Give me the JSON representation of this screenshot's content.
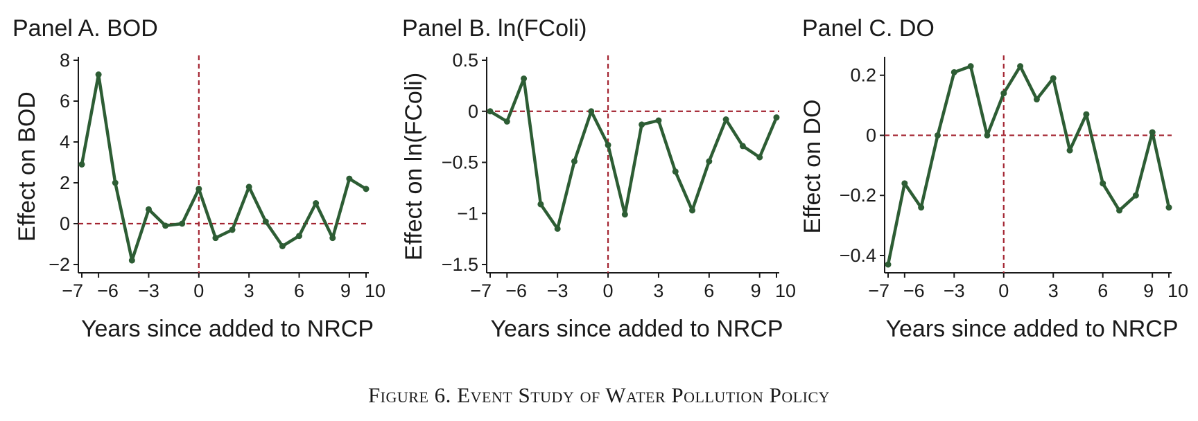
{
  "caption": "Figure 6. Event Study of Water Pollution Policy",
  "chart_data": [
    {
      "type": "line",
      "title": "Panel A. BOD",
      "xlabel": "Years since added to NRCP",
      "ylabel": "Effect on BOD",
      "xlim": [
        -7,
        10
      ],
      "ylim": [
        -2,
        8
      ],
      "xticks": [
        -7,
        -6,
        -3,
        0,
        3,
        6,
        9,
        10
      ],
      "xtick_labels": [
        "−7",
        "−6",
        "−3",
        "0",
        "3",
        "6",
        "9",
        "10"
      ],
      "yticks": [
        -2,
        0,
        2,
        4,
        6,
        8
      ],
      "ytick_labels": [
        "−2",
        "0",
        "2",
        "4",
        "6",
        "8"
      ],
      "reference_lines": {
        "x": 0,
        "y": 0
      },
      "series": [
        {
          "x": [
            -7,
            -6,
            -5,
            -4,
            -3,
            -2,
            -1,
            0,
            1,
            2,
            3,
            4,
            5,
            6,
            7,
            8,
            9,
            10
          ],
          "y": [
            2.9,
            7.3,
            2.0,
            -1.8,
            0.7,
            -0.1,
            0.0,
            1.7,
            -0.7,
            -0.3,
            1.8,
            0.1,
            -1.1,
            -0.6,
            1.0,
            -0.7,
            2.2,
            1.7
          ]
        }
      ]
    },
    {
      "type": "line",
      "title": "Panel B. ln(FColi)",
      "xlabel": "Years since added to NRCP",
      "ylabel": "Effect on ln(FColi)",
      "xlim": [
        -7,
        10
      ],
      "ylim": [
        -1.5,
        0.5
      ],
      "xticks": [
        -7,
        -6,
        -3,
        0,
        3,
        6,
        9,
        10
      ],
      "xtick_labels": [
        "−7",
        "−6",
        "−3",
        "0",
        "3",
        "6",
        "9",
        "10"
      ],
      "yticks": [
        -1.5,
        -1,
        -0.5,
        0,
        0.5
      ],
      "ytick_labels": [
        "−1.5",
        "−1",
        "−0.5",
        "0",
        "0.5"
      ],
      "reference_lines": {
        "x": 0,
        "y": 0
      },
      "series": [
        {
          "x": [
            -7,
            -6,
            -5,
            -4,
            -3,
            -2,
            -1,
            0,
            1,
            2,
            3,
            4,
            5,
            6,
            7,
            8,
            9,
            10
          ],
          "y": [
            0.0,
            -0.1,
            0.32,
            -0.91,
            -1.15,
            -0.49,
            0.0,
            -0.33,
            -1.01,
            -0.13,
            -0.09,
            -0.59,
            -0.97,
            -0.49,
            -0.08,
            -0.34,
            -0.45,
            -0.06
          ]
        }
      ]
    },
    {
      "type": "line",
      "title": "Panel C. DO",
      "xlabel": "Years since added to NRCP",
      "ylabel": "Effect on DO",
      "xlim": [
        -7,
        10
      ],
      "ylim": [
        -0.43,
        0.25
      ],
      "xticks": [
        -7,
        -6,
        -3,
        0,
        3,
        6,
        9,
        10
      ],
      "xtick_labels": [
        "−7",
        "−6",
        "−3",
        "0",
        "3",
        "6",
        "9",
        "10"
      ],
      "yticks": [
        -0.4,
        -0.2,
        0,
        0.2
      ],
      "ytick_labels": [
        "−0.4",
        "−0.2",
        "0",
        "0.2"
      ],
      "reference_lines": {
        "x": 0,
        "y": 0
      },
      "series": [
        {
          "x": [
            -7,
            -6,
            -5,
            -4,
            -3,
            -2,
            -1,
            0,
            1,
            2,
            3,
            4,
            5,
            6,
            7,
            8,
            9,
            10
          ],
          "y": [
            -0.43,
            -0.16,
            -0.24,
            0.0,
            0.21,
            0.23,
            0.0,
            0.14,
            0.23,
            0.12,
            0.19,
            -0.05,
            0.07,
            -0.16,
            -0.25,
            -0.2,
            0.01,
            -0.24
          ]
        }
      ]
    }
  ],
  "colors": {
    "series": "#2d5d34",
    "reference": "#a32431",
    "axis": "#1a1a1a"
  }
}
